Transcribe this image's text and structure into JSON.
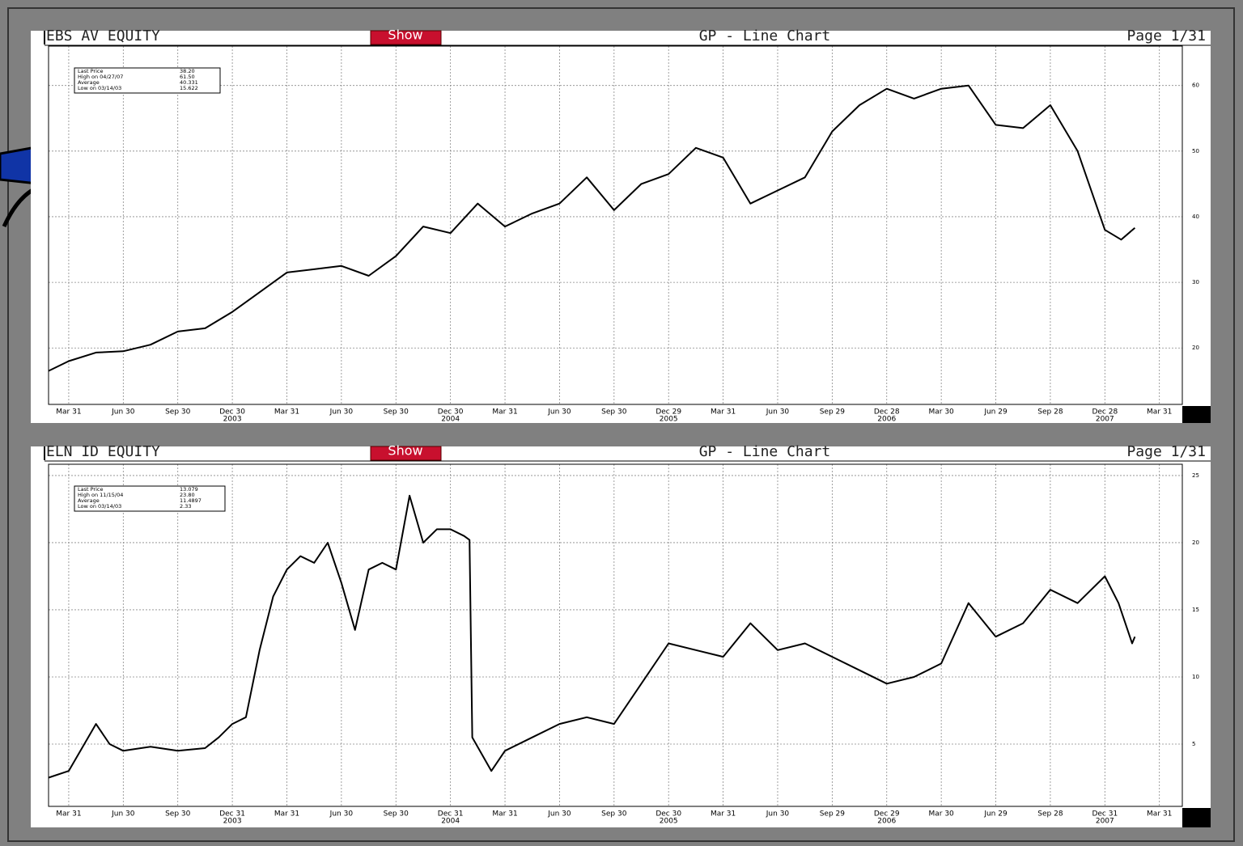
{
  "chart_data": [
    {
      "type": "line",
      "title": "EBS AV EQUITY",
      "button": "Show",
      "subtitle": "GP - Line Chart",
      "page": "Page 1/31",
      "stats": [
        [
          "Last Price",
          "38.20"
        ],
        [
          "High on 04/27/07",
          "61.50"
        ],
        [
          "Average",
          "40.331"
        ],
        [
          "Low on 03/14/03",
          "15.622"
        ]
      ],
      "x": [
        -0.37,
        0,
        0.5,
        1,
        1.5,
        2,
        2.5,
        3,
        3.5,
        4,
        4.5,
        5,
        5.5,
        6,
        6.5,
        7,
        7.5,
        8,
        8.5,
        9,
        9.5,
        10,
        10.5,
        11,
        11.5,
        12,
        12.5,
        13,
        13.5,
        14,
        14.5,
        15,
        15.5,
        16,
        16.5,
        17,
        17.5,
        18,
        18.5,
        19,
        19.3,
        19.55
      ],
      "values": [
        16.5,
        18,
        19.3,
        19.5,
        20.5,
        22.5,
        23,
        25.5,
        28.5,
        31.5,
        32,
        32.5,
        31,
        34,
        38.5,
        37.5,
        42,
        38.5,
        40.5,
        42,
        46,
        41,
        45,
        46.5,
        50.5,
        49,
        42,
        44,
        46,
        53,
        57,
        59.5,
        58,
        59.5,
        60,
        54,
        53.5,
        57,
        50,
        38,
        36.5,
        38.3
      ],
      "color": "#000000",
      "xlim": [
        -0.37,
        20.42
      ],
      "ylim": [
        11.4,
        66
      ],
      "yticks": [
        20,
        30,
        40,
        50,
        60
      ],
      "xticks": [
        {
          "value": 0,
          "label": "Mar 31"
        },
        {
          "value": 1,
          "label": "Jun 30"
        },
        {
          "value": 2,
          "label": "Sep 30"
        },
        {
          "value": 3,
          "label": "Dec 30"
        },
        {
          "value": 4,
          "label": "Mar 31"
        },
        {
          "value": 5,
          "label": "Jun 30"
        },
        {
          "value": 6,
          "label": "Sep 30"
        },
        {
          "value": 7,
          "label": "Dec 30"
        },
        {
          "value": 8,
          "label": "Mar 31"
        },
        {
          "value": 9,
          "label": "Jun 30"
        },
        {
          "value": 10,
          "label": "Sep 30"
        },
        {
          "value": 11,
          "label": "Dec 29"
        },
        {
          "value": 12,
          "label": "Mar 31"
        },
        {
          "value": 13,
          "label": "Jun 30"
        },
        {
          "value": 14,
          "label": "Sep 29"
        },
        {
          "value": 15,
          "label": "Dec 28"
        },
        {
          "value": 16,
          "label": "Mar 30"
        },
        {
          "value": 17,
          "label": "Jun 29"
        },
        {
          "value": 18,
          "label": "Sep 28"
        },
        {
          "value": 19,
          "label": "Dec 28"
        },
        {
          "value": 20,
          "label": "Mar 31"
        }
      ],
      "year_labels": [
        {
          "value": 3,
          "label": "2003"
        },
        {
          "value": 7,
          "label": "2004"
        },
        {
          "value": 11,
          "label": "2005"
        },
        {
          "value": 15,
          "label": "2006"
        },
        {
          "value": 19,
          "label": "2007"
        }
      ],
      "grid": true
    },
    {
      "type": "line",
      "title": "ELN ID EQUITY",
      "button": "Show",
      "subtitle": "GP - Line Chart",
      "page": "Page 1/31",
      "stats": [
        [
          "Last Price",
          "13.079"
        ],
        [
          "High on 11/15/04",
          "23.80"
        ],
        [
          "Average",
          "11.4897"
        ],
        [
          "Low on 03/14/03",
          "2.33"
        ]
      ],
      "x": [
        -0.37,
        0,
        0.5,
        0.75,
        1,
        1.5,
        2,
        2.5,
        2.75,
        3,
        3.25,
        3.5,
        3.75,
        4,
        4.25,
        4.5,
        4.75,
        5,
        5.25,
        5.5,
        5.75,
        6,
        6.25,
        6.5,
        6.75,
        7,
        7.25,
        7.35,
        7.4,
        7.75,
        8,
        8.5,
        9,
        9.5,
        10,
        10.5,
        11,
        11.5,
        12,
        12.5,
        13,
        13.5,
        14,
        14.5,
        15,
        15.5,
        16,
        16.5,
        17,
        17.5,
        18,
        18.5,
        19,
        19.25,
        19.5,
        19.55
      ],
      "values": [
        2.5,
        3,
        6.5,
        5,
        4.5,
        4.8,
        4.5,
        4.7,
        5.5,
        6.5,
        7,
        12,
        16,
        18,
        19,
        18.5,
        20,
        17,
        13.5,
        18,
        18.5,
        18,
        23.5,
        20,
        21,
        21,
        20.5,
        20.2,
        5.5,
        3,
        4.5,
        5.5,
        6.5,
        7,
        6.5,
        9.5,
        12.5,
        12,
        11.5,
        14,
        12,
        12.5,
        11.5,
        10.5,
        9.5,
        10,
        11,
        15.5,
        13,
        14,
        16.5,
        15.5,
        17.5,
        15.5,
        12.5,
        13
      ],
      "color": "#000000",
      "xlim": [
        -0.37,
        20.42
      ],
      "ylim": [
        0.36,
        25.84
      ],
      "yticks": [
        5,
        10,
        15,
        20,
        25
      ],
      "xticks": [
        {
          "value": 0,
          "label": "Mar 31"
        },
        {
          "value": 1,
          "label": "Jun 30"
        },
        {
          "value": 2,
          "label": "Sep 30"
        },
        {
          "value": 3,
          "label": "Dec 31"
        },
        {
          "value": 4,
          "label": "Mar 31"
        },
        {
          "value": 5,
          "label": "Jun 30"
        },
        {
          "value": 6,
          "label": "Sep 30"
        },
        {
          "value": 7,
          "label": "Dec 31"
        },
        {
          "value": 8,
          "label": "Mar 31"
        },
        {
          "value": 9,
          "label": "Jun 30"
        },
        {
          "value": 10,
          "label": "Sep 30"
        },
        {
          "value": 11,
          "label": "Dec 30"
        },
        {
          "value": 12,
          "label": "Mar 31"
        },
        {
          "value": 13,
          "label": "Jun 30"
        },
        {
          "value": 14,
          "label": "Sep 29"
        },
        {
          "value": 15,
          "label": "Dec 29"
        },
        {
          "value": 16,
          "label": "Mar 30"
        },
        {
          "value": 17,
          "label": "Jun 29"
        },
        {
          "value": 18,
          "label": "Sep 28"
        },
        {
          "value": 19,
          "label": "Dec 31"
        },
        {
          "value": 20,
          "label": "Mar 31"
        }
      ],
      "year_labels": [
        {
          "value": 3,
          "label": "2003"
        },
        {
          "value": 7,
          "label": "2004"
        },
        {
          "value": 11,
          "label": "2005"
        },
        {
          "value": 15,
          "label": "2006"
        },
        {
          "value": 19,
          "label": "2007"
        }
      ],
      "grid": true
    }
  ]
}
